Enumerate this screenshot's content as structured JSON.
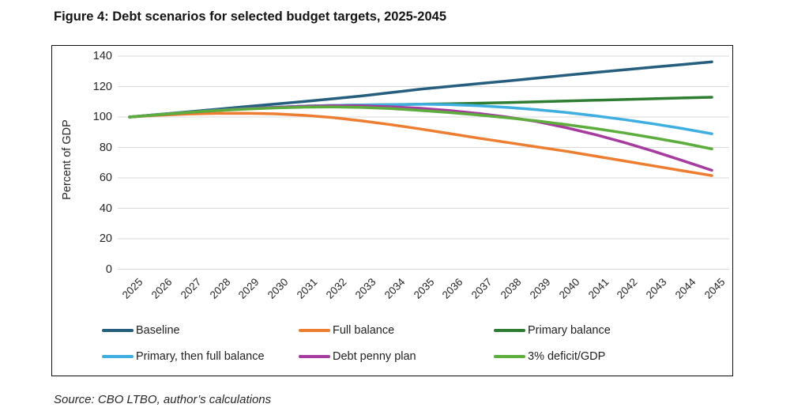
{
  "figure": {
    "title": "Figure 4: Debt scenarios for selected budget targets, 2025-2045",
    "source_note": "Source: CBO LTBO, author’s calculations"
  },
  "chart_data": {
    "type": "line",
    "title": "Figure 4: Debt scenarios for selected budget targets, 2025-2045",
    "xlabel": "",
    "ylabel": "Percent of GDP",
    "ylim": [
      0,
      140
    ],
    "ytick_step": 20,
    "grid": true,
    "gridline_color": "#d9d9d9",
    "legend_position": "bottom",
    "x": [
      2025,
      2026,
      2027,
      2028,
      2029,
      2030,
      2031,
      2032,
      2033,
      2034,
      2035,
      2036,
      2037,
      2038,
      2039,
      2040,
      2041,
      2042,
      2043,
      2044,
      2045
    ],
    "series": [
      {
        "name": "Baseline",
        "color": "#255E7E",
        "values": [
          100,
          101.7,
          103.4,
          105.1,
          106.8,
          108.5,
          110.2,
          112.0,
          113.9,
          116.1,
          118.3,
          120.1,
          121.9,
          123.7,
          125.6,
          127.5,
          129.3,
          131.0,
          132.8,
          134.5,
          136.2
        ]
      },
      {
        "name": "Full balance",
        "color": "#ED7D31",
        "values": [
          100,
          101.2,
          102.0,
          102.4,
          102.5,
          102.1,
          101.1,
          99.6,
          97.4,
          94.9,
          92.1,
          89.1,
          86.1,
          83.2,
          80.3,
          77.5,
          74.3,
          71.1,
          67.9,
          64.7,
          61.5
        ]
      },
      {
        "name": "Primary balance",
        "color": "#2E7D32",
        "values": [
          100,
          101.6,
          103.1,
          104.4,
          105.5,
          106.4,
          107.1,
          107.6,
          107.9,
          108.1,
          108.4,
          108.7,
          109.1,
          109.5,
          110.0,
          110.5,
          111.0,
          111.5,
          112.0,
          112.5,
          113.0
        ]
      },
      {
        "name": "Primary, then full balance",
        "color": "#3FAEE0",
        "values": [
          100,
          101.6,
          103.1,
          104.4,
          105.5,
          106.4,
          107.1,
          107.6,
          107.9,
          108.1,
          108.4,
          108.1,
          107.4,
          106.3,
          104.8,
          103.0,
          100.8,
          98.3,
          95.5,
          92.4,
          89.0
        ]
      },
      {
        "name": "Debt penny plan",
        "color": "#A63C9E",
        "values": [
          100,
          101.5,
          103.0,
          104.3,
          105.4,
          106.3,
          107.0,
          107.4,
          107.3,
          106.7,
          105.7,
          104.2,
          102.3,
          99.9,
          97.0,
          93.0,
          88.4,
          83.2,
          77.5,
          71.3,
          65.0
        ]
      },
      {
        "name": "3% deficit/GDP",
        "color": "#5CAD3C",
        "values": [
          100,
          101.5,
          103.0,
          104.2,
          105.2,
          106.0,
          106.5,
          106.6,
          106.3,
          105.5,
          104.3,
          102.9,
          101.3,
          99.5,
          97.4,
          95.0,
          92.4,
          89.5,
          86.3,
          82.9,
          79.0
        ]
      }
    ]
  }
}
